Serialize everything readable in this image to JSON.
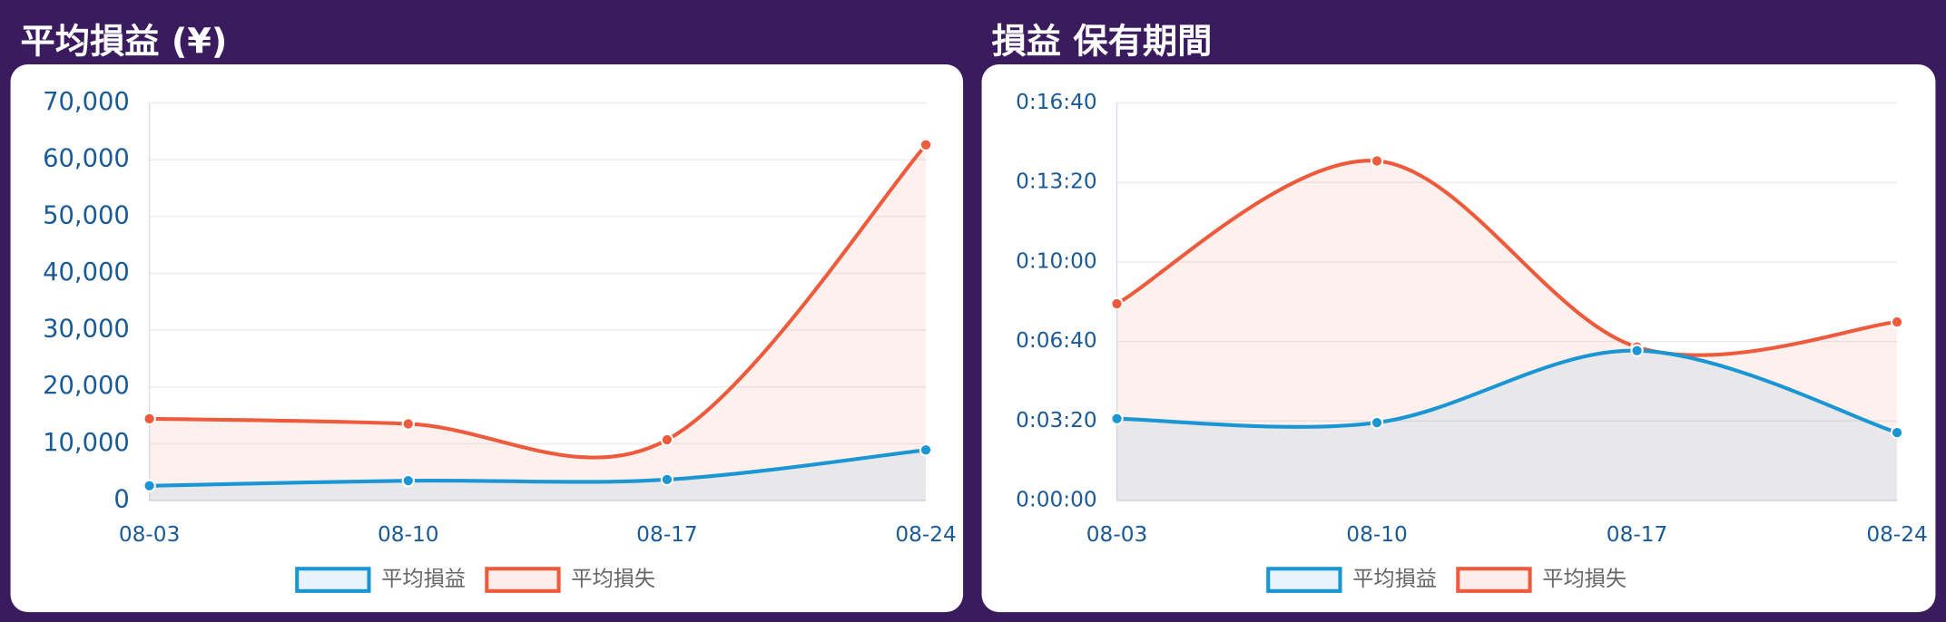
{
  "chart_data": [
    {
      "type": "area",
      "title": "平均損益 (¥)",
      "categories": [
        "08-03",
        "08-10",
        "08-17",
        "08-24"
      ],
      "series": [
        {
          "name": "平均損益",
          "color": "#1a96d4",
          "values": [
            2600,
            3500,
            3700,
            8900
          ]
        },
        {
          "name": "平均損失",
          "color": "#ee5a3c",
          "values": [
            14400,
            13500,
            10700,
            62600
          ]
        }
      ],
      "ylim": [
        0,
        70000
      ],
      "yticks": [
        0,
        {
          "value": 10000,
          "label": "10,000"
        },
        {
          "value": 20000,
          "label": "20,000"
        },
        {
          "value": 30000,
          "label": "30,000"
        },
        {
          "value": 40000,
          "label": "40,000"
        },
        {
          "value": 50000,
          "label": "50,000"
        },
        {
          "value": 60000,
          "label": "60,000"
        },
        {
          "value": 70000,
          "label": "70,000"
        }
      ],
      "grid": true,
      "legend": "bottom"
    },
    {
      "type": "area",
      "title": "損益 保有期間",
      "categories": [
        "08-03",
        "08-10",
        "08-17",
        "08-24"
      ],
      "series": [
        {
          "name": "平均損益",
          "color": "#1a96d4",
          "values": [
            206,
            196,
            377,
            171
          ]
        },
        {
          "name": "平均損失",
          "color": "#ee5a3c",
          "values": [
            495,
            854,
            386,
            449
          ]
        }
      ],
      "ylim": [
        0,
        1000
      ],
      "yticks": [
        {
          "value": 0,
          "label": "0:00:00"
        },
        {
          "value": 200,
          "label": "0:03:20"
        },
        {
          "value": 400,
          "label": "0:06:40"
        },
        {
          "value": 600,
          "label": "0:10:00"
        },
        {
          "value": 800,
          "label": "0:13:20"
        },
        {
          "value": 1000,
          "label": "0:16:40"
        }
      ],
      "grid": true,
      "legend": "bottom"
    }
  ]
}
